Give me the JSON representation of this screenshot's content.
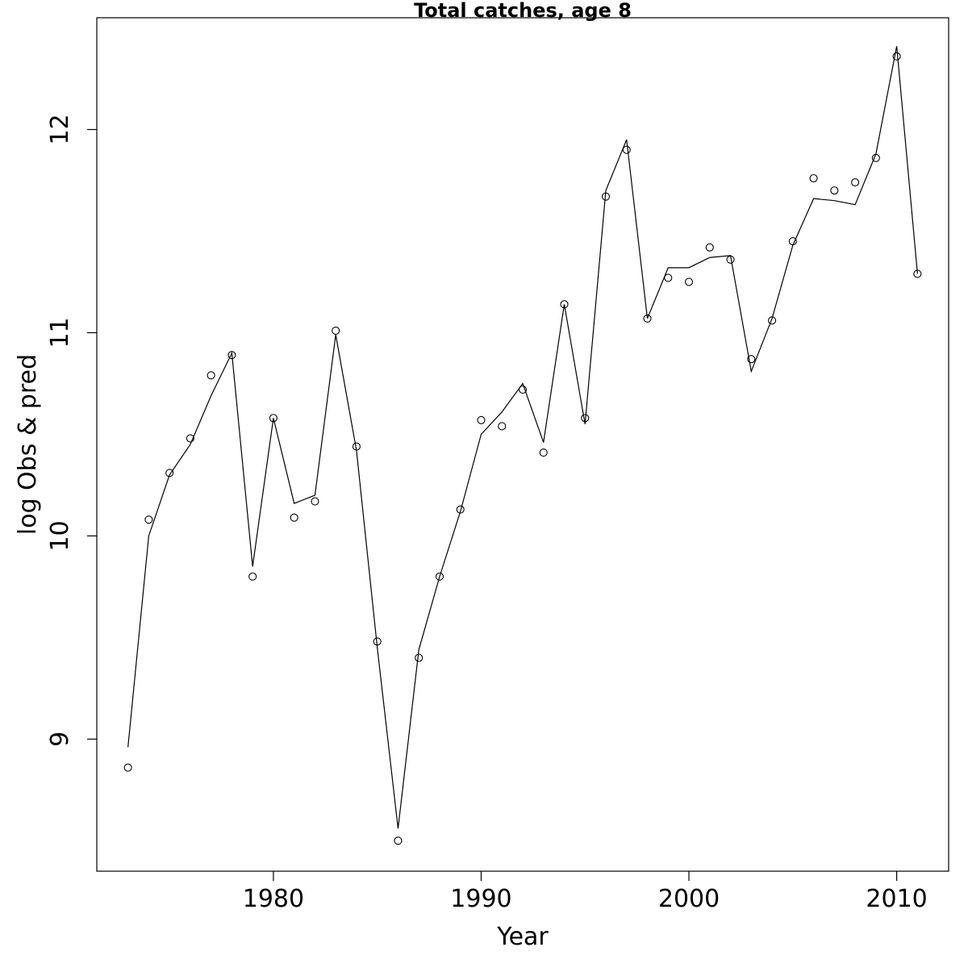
{
  "chart_data": {
    "type": "line",
    "title": "Total catches, age 8",
    "xlabel": "Year",
    "ylabel": "log Obs & pred",
    "xlim": [
      1971.5,
      2012.5
    ],
    "ylim": [
      8.35,
      12.55
    ],
    "x_ticks": [
      1980,
      1990,
      2000,
      2010
    ],
    "y_ticks": [
      9,
      10,
      11,
      12
    ],
    "grid": false,
    "x": [
      1973,
      1974,
      1975,
      1976,
      1977,
      1978,
      1979,
      1980,
      1981,
      1982,
      1983,
      1984,
      1985,
      1986,
      1987,
      1988,
      1989,
      1990,
      1991,
      1992,
      1993,
      1994,
      1995,
      1996,
      1997,
      1998,
      1999,
      2000,
      2001,
      2002,
      2003,
      2004,
      2005,
      2006,
      2007,
      2008,
      2009,
      2010,
      2011
    ],
    "series": [
      {
        "style": "points",
        "marker": "open-circle",
        "values": [
          8.86,
          10.08,
          10.31,
          10.48,
          10.79,
          10.89,
          9.8,
          10.58,
          10.09,
          10.17,
          11.01,
          10.44,
          9.48,
          8.5,
          9.4,
          9.8,
          10.13,
          10.57,
          10.54,
          10.72,
          10.41,
          11.14,
          10.58,
          11.67,
          11.9,
          11.07,
          11.27,
          11.25,
          11.42,
          11.36,
          10.87,
          11.06,
          11.45,
          11.76,
          11.7,
          11.74,
          11.86,
          12.36,
          11.29
        ]
      },
      {
        "style": "line",
        "values": [
          8.96,
          10.0,
          10.3,
          10.45,
          10.69,
          10.9,
          9.85,
          10.58,
          10.16,
          10.2,
          10.99,
          10.42,
          9.45,
          8.56,
          9.44,
          9.8,
          10.12,
          10.5,
          10.61,
          10.75,
          10.46,
          11.14,
          10.55,
          11.7,
          11.95,
          11.07,
          11.32,
          11.32,
          11.37,
          11.38,
          10.81,
          11.07,
          11.43,
          11.66,
          11.65,
          11.63,
          11.88,
          12.41,
          11.29
        ]
      }
    ]
  }
}
